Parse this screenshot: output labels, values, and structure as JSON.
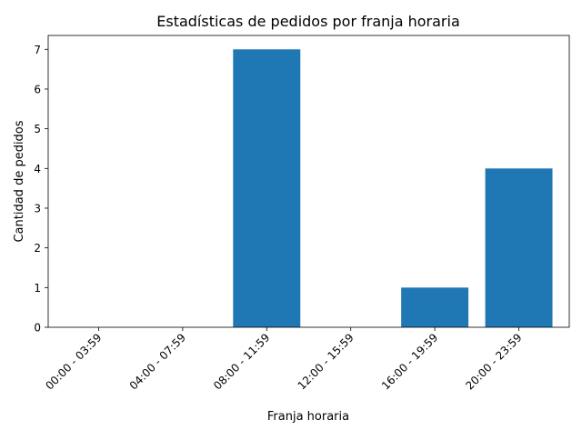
{
  "chart_data": {
    "type": "bar",
    "title": "Estadísticas de pedidos por franja horaria",
    "xlabel": "Franja horaria",
    "ylabel": "Cantidad de pedidos",
    "categories": [
      "00:00 - 03:59",
      "04:00 - 07:59",
      "08:00 - 11:59",
      "12:00 - 15:59",
      "16:00 - 19:59",
      "20:00 - 23:59"
    ],
    "values": [
      0,
      0,
      7,
      0,
      1,
      4
    ],
    "ylim": [
      0,
      7.35
    ],
    "yticks": [
      0,
      1,
      2,
      3,
      4,
      5,
      6,
      7
    ],
    "grid": false,
    "bar_color": "#1f77b4"
  }
}
